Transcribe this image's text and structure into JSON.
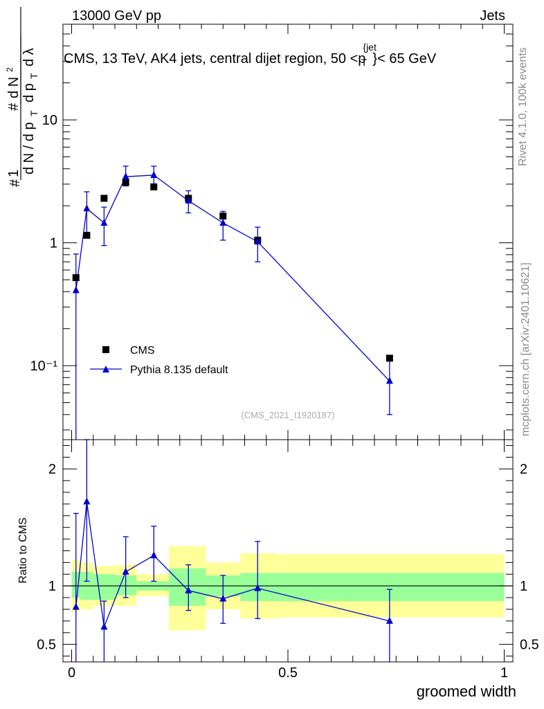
{
  "header": {
    "left": "13000 GeV pp",
    "right": "Jets",
    "side_rivet": "Rivet 4.1.0,  100k events",
    "side_mcplots": "mcplots.cern.ch [arXiv:2401.10621]",
    "analysis_id": "(CMS_2021_I1920187)"
  },
  "chart_data": [
    {
      "panel": "main",
      "type": "scatter",
      "title": "CMS, 13 TeV, AK4 jets, central dijet region, 50 < p_T^{jet} < 65 GeV",
      "ylabel": "(1 / dN/dp_T) d²N / dp_T dλ",
      "xlabel": "groomed width",
      "yscale": "log",
      "xlim": [
        -0.02,
        1.02
      ],
      "ylim": [
        0.025,
        60
      ],
      "yticks": [
        {
          "value": 0.1,
          "label": "10⁻¹"
        },
        {
          "value": 1,
          "label": "1"
        },
        {
          "value": 10,
          "label": "10"
        }
      ],
      "legend": {
        "position": "lower-left",
        "entries": [
          "CMS",
          "Pythia 8.135 default"
        ]
      },
      "series": [
        {
          "name": "CMS",
          "marker": "square",
          "color": "#000000",
          "x": [
            0.01,
            0.035,
            0.075,
            0.125,
            0.19,
            0.27,
            0.35,
            0.43,
            0.735
          ],
          "y": [
            0.52,
            1.15,
            2.3,
            3.1,
            2.85,
            2.3,
            1.65,
            1.05,
            0.115
          ]
        },
        {
          "name": "Pythia 8.135 default",
          "marker": "triangle",
          "color": "#0000cc",
          "x": [
            0.01,
            0.035,
            0.075,
            0.125,
            0.19,
            0.27,
            0.35,
            0.43,
            0.735
          ],
          "y": [
            0.41,
            1.9,
            1.45,
            3.45,
            3.55,
            2.2,
            1.45,
            1.02,
            0.075
          ],
          "err_low": [
            0.41,
            0.7,
            0.5,
            0.55,
            0.55,
            0.45,
            0.4,
            0.32,
            0.035
          ],
          "err_high": [
            0.4,
            0.7,
            0.5,
            0.75,
            0.65,
            0.45,
            0.35,
            0.32,
            0.035
          ]
        }
      ]
    },
    {
      "panel": "ratio",
      "type": "line",
      "ylabel": "Ratio to CMS",
      "xlabel": "groomed width",
      "xlim": [
        -0.02,
        1.02
      ],
      "ylim": [
        0.35,
        2.25
      ],
      "xticks": [
        {
          "value": 0,
          "label": "0"
        },
        {
          "value": 0.5,
          "label": "0.5"
        },
        {
          "value": 1,
          "label": "1"
        }
      ],
      "yticks": [
        {
          "value": 0.5,
          "label": "0.5"
        },
        {
          "value": 1,
          "label": "1"
        },
        {
          "value": 2,
          "label": "2"
        }
      ],
      "bands": [
        {
          "x0": 0.0,
          "x1": 0.02,
          "inner": [
            0.9,
            1.12
          ],
          "outer": [
            0.78,
            1.22
          ]
        },
        {
          "x0": 0.02,
          "x1": 0.05,
          "inner": [
            0.88,
            1.12
          ],
          "outer": [
            0.8,
            1.2
          ]
        },
        {
          "x0": 0.05,
          "x1": 0.1,
          "inner": [
            0.88,
            1.1
          ],
          "outer": [
            0.83,
            1.17
          ]
        },
        {
          "x0": 0.1,
          "x1": 0.15,
          "inner": [
            0.92,
            1.09
          ],
          "outer": [
            0.83,
            1.18
          ]
        },
        {
          "x0": 0.15,
          "x1": 0.225,
          "inner": [
            0.96,
            1.04
          ],
          "outer": [
            0.91,
            1.1
          ]
        },
        {
          "x0": 0.225,
          "x1": 0.31,
          "inner": [
            0.83,
            1.15
          ],
          "outer": [
            0.62,
            1.34
          ]
        },
        {
          "x0": 0.31,
          "x1": 0.39,
          "inner": [
            0.91,
            1.09
          ],
          "outer": [
            0.8,
            1.2
          ]
        },
        {
          "x0": 0.39,
          "x1": 0.475,
          "inner": [
            0.87,
            1.11
          ],
          "outer": [
            0.72,
            1.28
          ]
        },
        {
          "x0": 0.475,
          "x1": 1.0,
          "inner": [
            0.87,
            1.11
          ],
          "outer": [
            0.73,
            1.27
          ]
        }
      ],
      "series": [
        {
          "name": "Pythia 8.135 default / CMS",
          "marker": "triangle",
          "color": "#0000cc",
          "x": [
            0.01,
            0.035,
            0.075,
            0.125,
            0.19,
            0.27,
            0.35,
            0.43,
            0.735
          ],
          "y": [
            0.82,
            1.72,
            0.65,
            1.12,
            1.26,
            0.96,
            0.89,
            0.98,
            0.7
          ],
          "err_low": [
            0.6,
            0.68,
            0.3,
            0.22,
            0.22,
            0.17,
            0.21,
            0.26,
            0.35
          ],
          "err_high": [
            0.8,
            0.7,
            0.22,
            0.3,
            0.25,
            0.22,
            0.2,
            0.4,
            0.27
          ]
        }
      ]
    }
  ]
}
